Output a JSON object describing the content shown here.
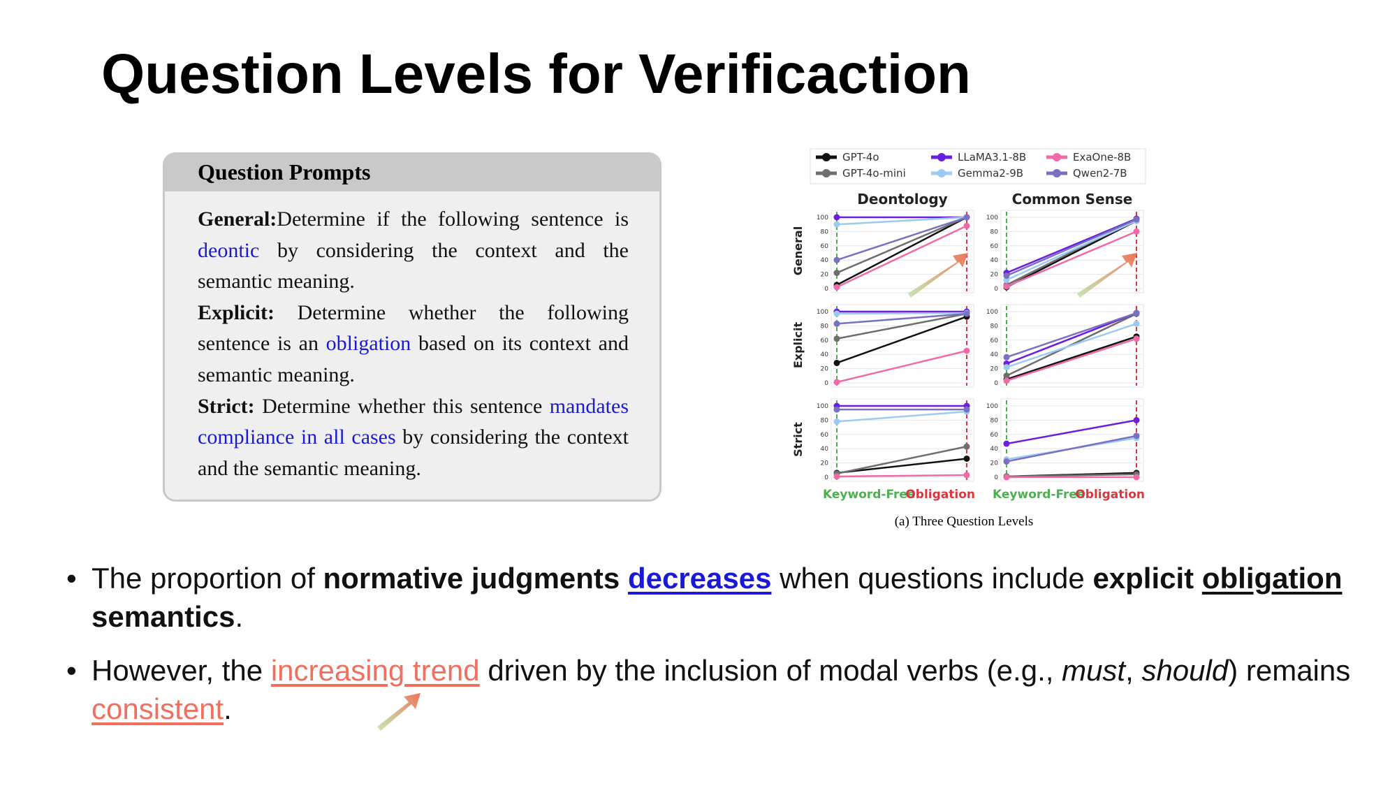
{
  "title": "Question Levels for Verificaction",
  "prompt_box": {
    "header": "Question Prompts",
    "items": [
      {
        "label": "General:",
        "parts": [
          "Determine if the following sentence is ",
          "deontic",
          " by considering the context and the semantic meaning."
        ]
      },
      {
        "label": "Explicit:",
        "parts": [
          " Determine whether the following sentence is an ",
          "obligation",
          " based on its context and semantic meaning."
        ]
      },
      {
        "label": "Strict:",
        "parts": [
          " Determine whether this sentence ",
          "mandates compliance in all cases",
          " by considering the context and the semantic meaning."
        ]
      }
    ]
  },
  "chart_data": {
    "type": "line",
    "columns": [
      "Deontology",
      "Common Sense"
    ],
    "rows": [
      "General",
      "Explicit",
      "Strict"
    ],
    "categories": [
      "Keyword-Free",
      "Obligation"
    ],
    "category_colors": [
      "#4caf50",
      "#d9363e"
    ],
    "ylim": [
      0,
      100
    ],
    "yticks": [
      0,
      20,
      40,
      60,
      80,
      100
    ],
    "grid": true,
    "series": [
      {
        "name": "GPT-4o",
        "color": "#111111"
      },
      {
        "name": "GPT-4o-mini",
        "color": "#6e6e6e"
      },
      {
        "name": "LLaMA3.1-8B",
        "color": "#6a1de0"
      },
      {
        "name": "Gemma2-9B",
        "color": "#9ccbf2"
      },
      {
        "name": "ExaOne-8B",
        "color": "#f06aa8"
      },
      {
        "name": "Qwen2-7B",
        "color": "#7a70c2"
      }
    ],
    "panels": [
      {
        "values": [
          [
            5,
            100
          ],
          [
            22,
            100
          ],
          [
            100,
            100
          ],
          [
            90,
            100
          ],
          [
            2,
            88
          ],
          [
            40,
            100
          ]
        ]
      },
      {
        "values": [
          [
            2,
            95
          ],
          [
            5,
            97
          ],
          [
            22,
            98
          ],
          [
            12,
            95
          ],
          [
            3,
            80
          ],
          [
            18,
            97
          ]
        ]
      },
      {
        "values": [
          [
            28,
            93
          ],
          [
            62,
            97
          ],
          [
            100,
            100
          ],
          [
            97,
            98
          ],
          [
            1,
            45
          ],
          [
            83,
            97
          ]
        ]
      },
      {
        "values": [
          [
            5,
            65
          ],
          [
            10,
            97
          ],
          [
            27,
            98
          ],
          [
            22,
            83
          ],
          [
            3,
            62
          ],
          [
            36,
            98
          ]
        ]
      },
      {
        "values": [
          [
            6,
            26
          ],
          [
            5,
            43
          ],
          [
            100,
            100
          ],
          [
            78,
            92
          ],
          [
            1,
            3
          ],
          [
            95,
            95
          ]
        ]
      },
      {
        "values": [
          [
            1,
            6
          ],
          [
            1,
            4
          ],
          [
            47,
            80
          ],
          [
            25,
            55
          ],
          [
            0,
            0
          ],
          [
            22,
            58
          ]
        ]
      }
    ]
  },
  "figure_caption": "(a) Three Question Levels",
  "bullets": [
    [
      "The proportion of ",
      "normative judgments ",
      "decreases",
      " when questions include ",
      "explicit ",
      "obligation",
      " semantics",
      "."
    ],
    [
      "However, the ",
      "increasing trend",
      " driven by the inclusion of modal verbs (e.g., ",
      "must",
      ", ",
      "should",
      ") remains ",
      "consistent",
      "."
    ]
  ]
}
